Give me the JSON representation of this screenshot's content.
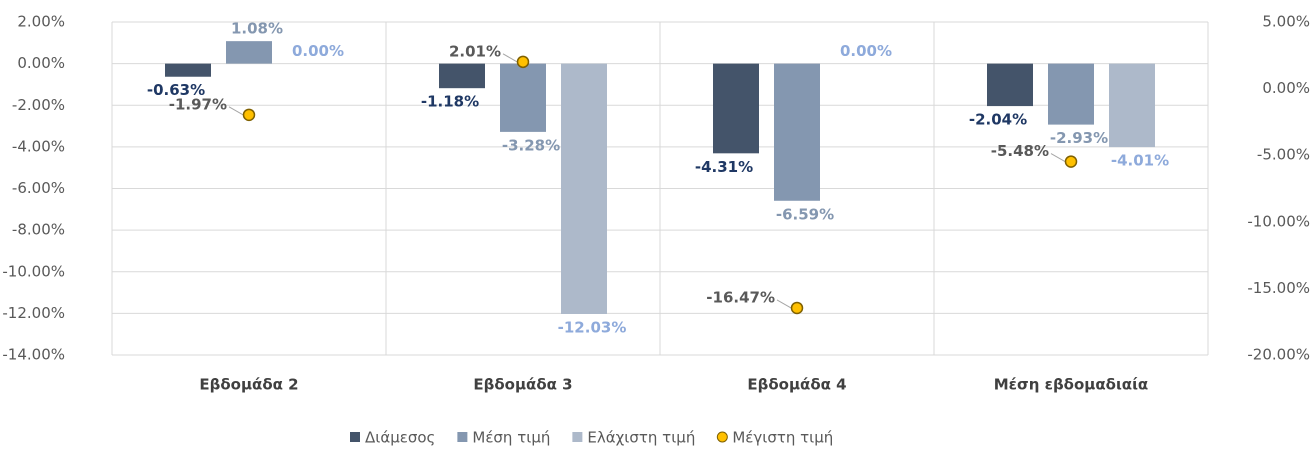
{
  "chart_data": {
    "type": "bar",
    "categories": [
      "Εβδομάδα 2",
      "Εβδομάδα 3",
      "Εβδομάδα 4",
      "Μέση εβδομαδιαία"
    ],
    "series": [
      {
        "name": "Διάμεσος",
        "color": "#44546a",
        "label_color": "#1f3864",
        "values": [
          -0.63,
          -1.18,
          -4.31,
          -2.04
        ],
        "value_labels": [
          "-0.63%",
          "-1.18%",
          "-4.31%",
          "-2.04%"
        ]
      },
      {
        "name": "Μέση τιμή",
        "color": "#8497b0",
        "label_color": "#8497b0",
        "values": [
          1.08,
          -3.28,
          -6.59,
          -2.93
        ],
        "value_labels": [
          "1.08%",
          "-3.28%",
          "-6.59%",
          "-2.93%"
        ]
      },
      {
        "name": "Ελάχιστη τιμή",
        "color": "#adb9ca",
        "label_color": "#8eaadb",
        "values": [
          0,
          -12.03,
          0,
          -4.01
        ],
        "value_labels": [
          "0.00%",
          "-12.03%",
          "0.00%",
          "-4.01%"
        ]
      },
      {
        "name": "Μέγιστη τιμή",
        "color": "#ffc000",
        "label_color": "#595959",
        "axis": "y2",
        "values": [
          -1.97,
          2.01,
          -16.47,
          -5.48
        ],
        "value_labels": [
          "-1.97%",
          "2.01%",
          "-16.47%",
          "-5.48%"
        ]
      }
    ],
    "ylim": [
      -14,
      2
    ],
    "yticks": [
      {
        "value": 2,
        "label": "2.00%"
      },
      {
        "value": 0,
        "label": "0.00%"
      },
      {
        "value": -2,
        "label": "-2.00%"
      },
      {
        "value": -4,
        "label": "-4.00%"
      },
      {
        "value": -6,
        "label": "-6.00%"
      },
      {
        "value": -8,
        "label": "-8.00%"
      },
      {
        "value": -10,
        "label": "-10.00%"
      },
      {
        "value": -12,
        "label": "-12.00%"
      },
      {
        "value": -14,
        "label": "-14.00%"
      }
    ],
    "y2lim": [
      -20,
      5
    ],
    "y2ticks": [
      {
        "value": 5,
        "label": "5.00%"
      },
      {
        "value": 0,
        "label": "0.00%"
      },
      {
        "value": -5,
        "label": "-5.00%"
      },
      {
        "value": -10,
        "label": "-10.00%"
      },
      {
        "value": -15,
        "label": "-15.00%"
      },
      {
        "value": -20,
        "label": "-20.00%"
      }
    ],
    "grid": true,
    "legend": "bottom"
  }
}
